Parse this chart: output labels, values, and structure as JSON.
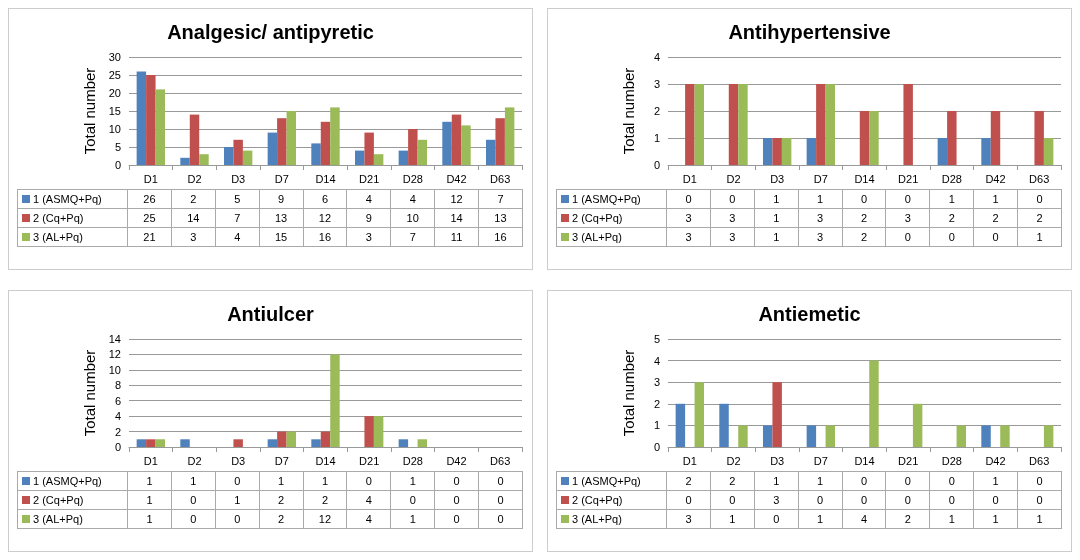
{
  "chart_data": [
    {
      "type": "bar",
      "title": "Analgesic/ antipyretic",
      "ylabel": "Total number",
      "categories": [
        "D1",
        "D2",
        "D3",
        "D7",
        "D14",
        "D21",
        "D28",
        "D42",
        "D63"
      ],
      "series": [
        {
          "name": "1 (ASMQ+Pq)",
          "color": "#4f81bd",
          "values": [
            26,
            2,
            5,
            9,
            6,
            4,
            4,
            12,
            7
          ]
        },
        {
          "name": "2 (Cq+Pq)",
          "color": "#c0504d",
          "values": [
            25,
            14,
            7,
            13,
            12,
            9,
            10,
            14,
            13
          ]
        },
        {
          "name": "3 (AL+Pq)",
          "color": "#9bbb59",
          "values": [
            21,
            3,
            4,
            15,
            16,
            3,
            7,
            11,
            16
          ]
        }
      ],
      "ylim": [
        0,
        30
      ],
      "yticks": [
        0,
        5,
        10,
        15,
        20,
        25,
        30
      ],
      "grid": "y",
      "legend": "bottom",
      "data_labels": true
    },
    {
      "type": "bar",
      "title": "Antihypertensive",
      "ylabel": "Total number",
      "categories": [
        "D1",
        "D2",
        "D3",
        "D7",
        "D14",
        "D21",
        "D28",
        "D42",
        "D63"
      ],
      "series": [
        {
          "name": "1 (ASMQ+Pq)",
          "color": "#4f81bd",
          "values": [
            0,
            0,
            1,
            1,
            0,
            0,
            1,
            1,
            0
          ]
        },
        {
          "name": "2 (Cq+Pq)",
          "color": "#c0504d",
          "values": [
            3,
            3,
            1,
            3,
            2,
            3,
            2,
            2,
            2
          ]
        },
        {
          "name": "3 (AL+Pq)",
          "color": "#9bbb59",
          "values": [
            3,
            3,
            1,
            3,
            2,
            0,
            0,
            0,
            1
          ]
        }
      ],
      "ylim": [
        0,
        4
      ],
      "yticks": [
        0,
        1,
        2,
        3,
        4
      ],
      "grid": "y",
      "legend": "bottom",
      "data_labels": true
    },
    {
      "type": "bar",
      "title": "Antiulcer",
      "ylabel": "Total number",
      "categories": [
        "D1",
        "D2",
        "D3",
        "D7",
        "D14",
        "D21",
        "D28",
        "D42",
        "D63"
      ],
      "series": [
        {
          "name": "1 (ASMQ+Pq)",
          "color": "#4f81bd",
          "values": [
            1,
            1,
            0,
            1,
            1,
            0,
            1,
            0,
            0
          ]
        },
        {
          "name": "2 (Cq+Pq)",
          "color": "#c0504d",
          "values": [
            1,
            0,
            1,
            2,
            2,
            4,
            0,
            0,
            0
          ]
        },
        {
          "name": "3 (AL+Pq)",
          "color": "#9bbb59",
          "values": [
            1,
            0,
            0,
            2,
            12,
            4,
            1,
            0,
            0
          ]
        }
      ],
      "ylim": [
        0,
        14
      ],
      "yticks": [
        0,
        2,
        4,
        6,
        8,
        10,
        12,
        14
      ],
      "grid": "y",
      "legend": "bottom",
      "data_labels": true
    },
    {
      "type": "bar",
      "title": "Antiemetic",
      "ylabel": "Total number",
      "categories": [
        "D1",
        "D2",
        "D3",
        "D7",
        "D14",
        "D21",
        "D28",
        "D42",
        "D63"
      ],
      "series": [
        {
          "name": "1 (ASMQ+Pq)",
          "color": "#4f81bd",
          "values": [
            2,
            2,
            1,
            1,
            0,
            0,
            0,
            1,
            0
          ]
        },
        {
          "name": "2 (Cq+Pq)",
          "color": "#c0504d",
          "values": [
            0,
            0,
            3,
            0,
            0,
            0,
            0,
            0,
            0
          ]
        },
        {
          "name": "3 (AL+Pq)",
          "color": "#9bbb59",
          "values": [
            3,
            1,
            0,
            1,
            4,
            2,
            1,
            1,
            1
          ]
        }
      ],
      "ylim": [
        0,
        5
      ],
      "yticks": [
        0,
        1,
        2,
        3,
        4,
        5
      ],
      "grid": "y",
      "legend": "bottom",
      "data_labels": true
    }
  ]
}
